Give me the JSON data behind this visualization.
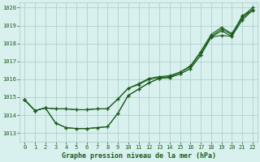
{
  "xlabel": "Graphe pression niveau de la mer (hPa)",
  "xlim": [
    -0.5,
    22.5
  ],
  "ylim": [
    1012.5,
    1020.3
  ],
  "yticks": [
    1013,
    1014,
    1015,
    1016,
    1017,
    1018,
    1019,
    1020
  ],
  "xticks": [
    0,
    1,
    2,
    3,
    4,
    5,
    6,
    7,
    8,
    9,
    10,
    11,
    12,
    13,
    14,
    15,
    16,
    17,
    18,
    19,
    20,
    21,
    22
  ],
  "bg_color": "#d8f0ee",
  "grid_color": "#b0d0cc",
  "line_color": "#1a5c1a",
  "x": [
    0,
    1,
    2,
    3,
    4,
    5,
    6,
    7,
    8,
    9,
    10,
    11,
    12,
    13,
    14,
    15,
    16,
    17,
    18,
    19,
    20,
    21,
    22
  ],
  "series1": [
    1014.85,
    1014.25,
    1014.4,
    1013.55,
    1013.3,
    1013.25,
    1013.25,
    1013.3,
    1013.35,
    1014.1,
    1015.1,
    1015.45,
    1015.8,
    1016.05,
    1016.1,
    1016.3,
    1016.6,
    1017.35,
    1018.35,
    1018.45,
    1018.4,
    1019.55,
    1019.85
  ],
  "series2": [
    1014.85,
    1014.25,
    1014.4,
    1013.55,
    1013.3,
    1013.25,
    1013.25,
    1013.3,
    1013.35,
    1014.1,
    1015.1,
    1015.45,
    1015.8,
    1016.05,
    1016.1,
    1016.3,
    1016.6,
    1017.35,
    1018.35,
    1018.7,
    1018.4,
    1019.3,
    1019.85
  ],
  "series3": [
    1014.85,
    1014.25,
    1014.4,
    1014.35,
    1014.35,
    1014.3,
    1014.3,
    1014.35,
    1014.35,
    1014.9,
    1015.5,
    1015.7,
    1016.0,
    1016.1,
    1016.15,
    1016.4,
    1016.7,
    1017.5,
    1018.4,
    1018.8,
    1018.5,
    1019.4,
    1019.9
  ],
  "series4": [
    1014.85,
    1014.25,
    1014.4,
    1014.35,
    1014.35,
    1014.3,
    1014.3,
    1014.35,
    1014.35,
    1014.9,
    1015.5,
    1015.75,
    1016.05,
    1016.15,
    1016.2,
    1016.4,
    1016.75,
    1017.55,
    1018.5,
    1018.9,
    1018.55,
    1019.5,
    1020.0
  ]
}
